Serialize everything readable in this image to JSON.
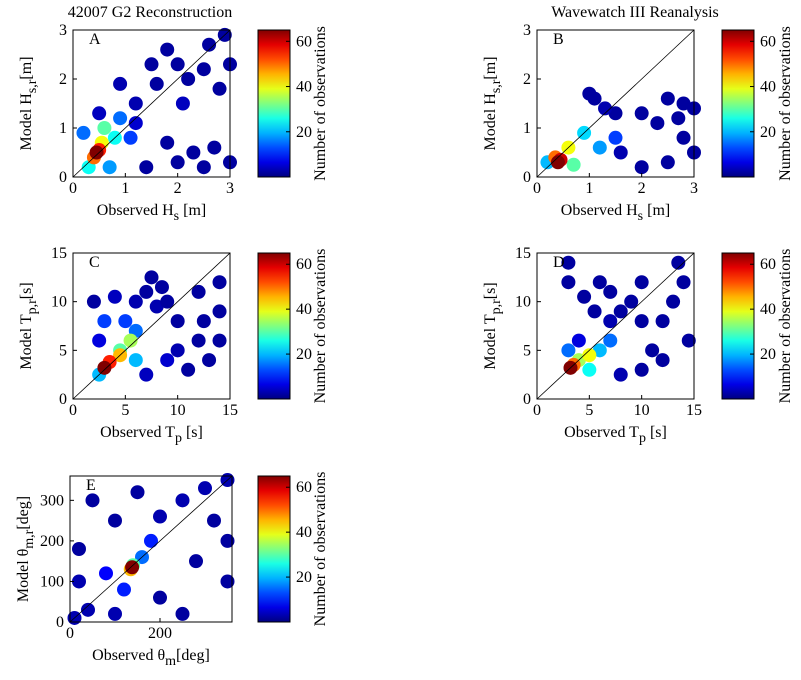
{
  "chart_data": [
    {
      "type": "density_scatter",
      "title": "42007 G2 Reconstruction",
      "panel_label": "A",
      "xlabel": [
        "Observed H",
        "s",
        " [m]"
      ],
      "ylabel": [
        "Model H",
        "s,r",
        "[m]"
      ],
      "xlim": [
        0,
        3
      ],
      "ylim": [
        0,
        3
      ],
      "xticks": [
        0,
        1,
        2,
        3
      ],
      "yticks": [
        0,
        1,
        2,
        3
      ],
      "identity_line": true,
      "colormap": "jet",
      "x": [
        1.5,
        2,
        2.5,
        3,
        2.2,
        2.8,
        1.8,
        2.6,
        2.9,
        1.6,
        2,
        2.5,
        3,
        2.3,
        1.8,
        2.7,
        1.2,
        0.9,
        1.4,
        0.5,
        1.2,
        2.1,
        0.9,
        1.1,
        0.2,
        0.7,
        0.3,
        0.8,
        0.6,
        0.55,
        0.4,
        0.5,
        0.45
      ],
      "y": [
        2.3,
        2.3,
        2.2,
        2.3,
        2,
        1.8,
        2.6,
        2.7,
        2.9,
        1.9,
        0.3,
        0.2,
        0.3,
        0.5,
        0.7,
        0.6,
        1.5,
        1.9,
        0.2,
        1.3,
        1.1,
        1.5,
        1.2,
        0.8,
        0.9,
        0.2,
        0.2,
        0.8,
        1.0,
        0.7,
        0.4,
        0.55,
        0.5
      ],
      "counts": [
        2,
        2,
        2,
        2,
        2,
        2,
        2,
        2,
        2,
        2,
        2,
        2,
        2,
        2,
        2,
        2,
        3,
        3,
        2,
        4,
        5,
        4,
        15,
        12,
        15,
        18,
        25,
        25,
        30,
        40,
        50,
        55,
        65
      ],
      "colorbar": {
        "label": "Number of observations",
        "clim": [
          0,
          65
        ],
        "ticks": [
          20,
          40,
          60
        ]
      }
    },
    {
      "type": "density_scatter",
      "title": "Wavewatch III Reanalysis",
      "panel_label": "B",
      "xlabel": [
        "Observed H",
        "s",
        "  [m]"
      ],
      "ylabel": [
        "Model H",
        "s,r",
        "[m]"
      ],
      "xlim": [
        0,
        3
      ],
      "ylim": [
        0,
        3
      ],
      "xticks": [
        0,
        1,
        2,
        3
      ],
      "yticks": [
        0,
        1,
        2,
        3
      ],
      "identity_line": true,
      "colormap": "jet",
      "x": [
        1,
        1.1,
        1.5,
        2,
        2.5,
        2.8,
        3,
        2.3,
        2.8,
        3,
        2.5,
        2,
        1.6,
        2.7,
        1.3,
        1.5,
        1.2,
        0.9,
        0.2,
        0.7,
        0.6,
        0.35,
        0.45,
        0.4
      ],
      "y": [
        1.7,
        1.6,
        1.3,
        1.3,
        1.6,
        1.5,
        1.4,
        1.1,
        0.8,
        0.5,
        0.3,
        0.2,
        0.5,
        1.2,
        1.4,
        0.8,
        0.6,
        0.9,
        0.3,
        0.25,
        0.6,
        0.4,
        0.35,
        0.3
      ],
      "counts": [
        2,
        2,
        2,
        2,
        2,
        2,
        2,
        2,
        2,
        2,
        2,
        2,
        3,
        2,
        3,
        12,
        18,
        22,
        20,
        30,
        40,
        50,
        60,
        65
      ],
      "colorbar": {
        "label": "Number of observations",
        "clim": [
          0,
          65
        ],
        "ticks": [
          20,
          40,
          60
        ]
      }
    },
    {
      "type": "density_scatter",
      "panel_label": "C",
      "xlabel": [
        "Observed T",
        "p",
        " [s]"
      ],
      "ylabel": [
        "Model T",
        "p,r",
        "[s]"
      ],
      "xlim": [
        0,
        15
      ],
      "ylim": [
        0,
        15
      ],
      "xticks": [
        0,
        5,
        10,
        15
      ],
      "yticks": [
        0,
        5,
        10,
        15
      ],
      "identity_line": true,
      "colormap": "jet",
      "x": [
        2,
        4,
        6,
        7,
        8,
        9,
        7.5,
        8.5,
        10,
        12,
        14,
        12.5,
        14,
        13,
        11,
        10,
        12,
        14,
        2.5,
        7,
        9,
        5,
        6,
        3,
        2.5,
        6,
        4.5,
        5.5,
        4.5,
        3.5,
        3
      ],
      "y": [
        10,
        10.5,
        10,
        11,
        9.5,
        10,
        12.5,
        11.5,
        8,
        11,
        12,
        8,
        6,
        4,
        3,
        5,
        6,
        9,
        6,
        2.5,
        4,
        8,
        7,
        8,
        2.5,
        4,
        5,
        6,
        4.5,
        3.8,
        3.2
      ],
      "counts": [
        2,
        4,
        3,
        2,
        3,
        2,
        2,
        2,
        2,
        2,
        2,
        2,
        2,
        2,
        2,
        3,
        2,
        2,
        6,
        4,
        5,
        12,
        15,
        12,
        20,
        20,
        30,
        35,
        45,
        55,
        65
      ],
      "colorbar": {
        "label": "Number of observations",
        "clim": [
          0,
          65
        ],
        "ticks": [
          20,
          40,
          60
        ]
      }
    },
    {
      "type": "density_scatter",
      "panel_label": "D",
      "xlabel": [
        "Observed T",
        "p",
        "  [s]"
      ],
      "ylabel": [
        "Model T",
        "p,r",
        "[s]"
      ],
      "xlim": [
        0,
        15
      ],
      "ylim": [
        0,
        15
      ],
      "xticks": [
        0,
        5,
        10,
        15
      ],
      "yticks": [
        0,
        5,
        10,
        15
      ],
      "identity_line": true,
      "colormap": "jet",
      "x": [
        3,
        3,
        4.5,
        5.5,
        6,
        7,
        7,
        8,
        9,
        10,
        10,
        12,
        13,
        13.5,
        14,
        14.5,
        12,
        11,
        10,
        8,
        4,
        7,
        6,
        3,
        5,
        4,
        5,
        3.5,
        3.2
      ],
      "y": [
        14,
        12,
        10.5,
        9,
        12,
        11,
        8,
        9,
        10,
        12,
        8,
        8,
        10,
        14,
        12,
        6,
        4,
        5,
        3,
        2.5,
        6,
        6,
        5,
        5,
        3,
        4,
        4.5,
        3.5,
        3.2
      ],
      "counts": [
        2,
        2,
        2,
        2,
        2,
        2,
        3,
        2,
        2,
        2,
        2,
        2,
        2,
        2,
        2,
        2,
        2,
        2,
        2,
        3,
        6,
        15,
        20,
        15,
        25,
        35,
        40,
        50,
        65
      ],
      "colorbar": {
        "label": "Number of observations",
        "clim": [
          0,
          65
        ],
        "ticks": [
          20,
          40,
          60
        ]
      }
    },
    {
      "type": "density_scatter",
      "panel_label": "E",
      "xlabel": [
        "Observed  θ",
        "m",
        "[deg]"
      ],
      "ylabel": [
        "Model θ",
        "m,r",
        "[deg]"
      ],
      "xlim": [
        0,
        360
      ],
      "ylim": [
        0,
        360
      ],
      "xticks": [
        0,
        200
      ],
      "yticks": [
        0,
        100,
        200,
        300
      ],
      "identity_line": true,
      "colormap": "jet",
      "x": [
        20,
        20,
        40,
        100,
        200,
        280,
        300,
        350,
        250,
        200,
        100,
        50,
        150,
        320,
        350,
        250,
        10,
        350,
        180,
        120,
        80,
        160,
        140,
        135,
        138
      ],
      "y": [
        180,
        100,
        30,
        20,
        60,
        150,
        330,
        350,
        300,
        260,
        250,
        300,
        320,
        250,
        100,
        20,
        10,
        200,
        200,
        80,
        120,
        160,
        140,
        130,
        135
      ],
      "counts": [
        2,
        3,
        3,
        3,
        2,
        2,
        3,
        3,
        3,
        3,
        2,
        2,
        2,
        2,
        2,
        2,
        3,
        2,
        10,
        10,
        8,
        15,
        30,
        45,
        65
      ],
      "colorbar": {
        "label": "Number of observations",
        "clim": [
          0,
          65
        ],
        "ticks": [
          20,
          40,
          60
        ]
      }
    }
  ]
}
